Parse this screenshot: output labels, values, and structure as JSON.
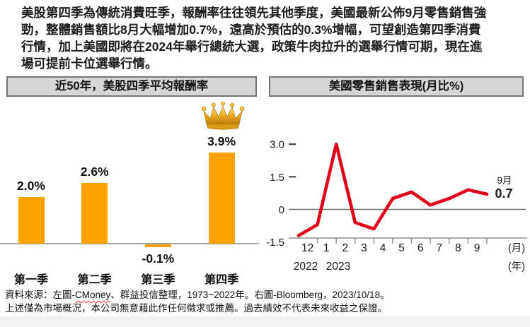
{
  "intro": {
    "text": "美股第四季為傳統消費旺季，報酬率往往領先其他季度，美國最新公佈9月零售銷售強\n勁，整體銷售額比8月大幅增加0.7%，遠高於預估的0.3%增幅，可望創造第四季消費\n行情，加上美國即將在2024年舉行總統大選，政策牛肉拉升的選舉行情可期，現在進\n場可提前卡位選舉行情。"
  },
  "colors": {
    "bar_orange": "#fba200",
    "line_red": "#e0001b",
    "title_bar_bg": "#d6d6d6",
    "title_bar_border": "#757575",
    "axis_gray": "#8c8c8c"
  },
  "chart_data": [
    {
      "type": "bar",
      "title": "近50年，美股四季平均報酬率",
      "categories": [
        "第一季",
        "第二季",
        "第三季",
        "第四季"
      ],
      "values": [
        2.0,
        2.6,
        -0.1,
        3.9
      ],
      "value_labels": [
        "2.0%",
        "2.6%",
        "-0.1%",
        "3.9%"
      ],
      "bar_color": "#fba200",
      "baseline": 0,
      "highlight": {
        "category": "第四季",
        "icon": "crown-icon"
      },
      "ylabel": "",
      "xlabel": ""
    },
    {
      "type": "line",
      "title": "美國零售銷售表現(月比%)",
      "x_tick_labels": [
        "12",
        "1",
        "2",
        "3",
        "4",
        "5",
        "6",
        "7",
        "8",
        "9"
      ],
      "leading_unlabeled_points": 1,
      "values": [
        -1.2,
        -0.7,
        3.0,
        -0.6,
        -0.9,
        0.5,
        0.8,
        0.2,
        0.5,
        0.9,
        0.7
      ],
      "y_ticks": [
        3.0,
        1.5,
        0,
        -1.5
      ],
      "y_tick_labels": [
        "3.0",
        "1.5",
        "0",
        "-1.5"
      ],
      "ylim": [
        -1.5,
        3.2
      ],
      "year_labels": [
        "2022",
        "2023"
      ],
      "x_axis_unit_labels": {
        "month": "(月)",
        "year": "(年)"
      },
      "annotation": {
        "month_label": "9月",
        "value_label": "0.7"
      },
      "line_color": "#e0001b",
      "grid": "zero-line-only",
      "legend": "none"
    }
  ],
  "footer": {
    "source_pre": "資料來源：左圖-",
    "source_spellcheck_word": "CMoney",
    "source_post": "、群益投信整理，1973~2022年。右圖-Bloomberg，2023/10/18。",
    "disclaimer": "上述僅為市場概況，本公司無意藉此作任何徵求或推薦。過去績效不代表未來收益之保證。"
  }
}
